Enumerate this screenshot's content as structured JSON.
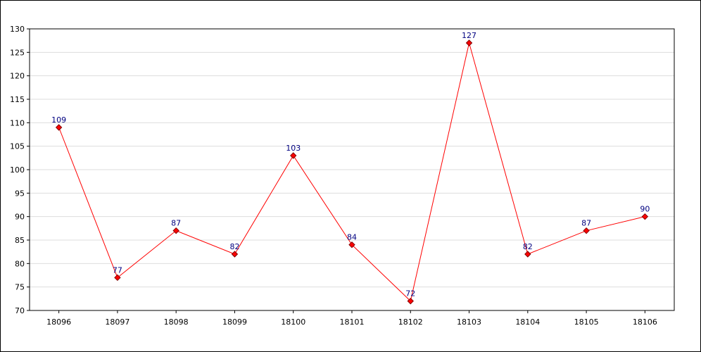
{
  "chart_data": {
    "type": "line",
    "title": "",
    "xlabel": "",
    "ylabel": "",
    "categories": [
      "18096",
      "18097",
      "18098",
      "18099",
      "18100",
      "18101",
      "18102",
      "18103",
      "18104",
      "18105",
      "18106"
    ],
    "series": [
      {
        "values": [
          109,
          77,
          87,
          82,
          103,
          84,
          72,
          127,
          82,
          87,
          90
        ]
      }
    ],
    "ylim": [
      70,
      130
    ],
    "yticks": [
      "70",
      "75",
      "80",
      "85",
      "90",
      "95",
      "100",
      "105",
      "110",
      "115",
      "120",
      "125",
      "130"
    ],
    "grid": true,
    "legend": "none",
    "colors": {
      "line": "#ff0000",
      "marker_fill": "#ff0000",
      "marker_stroke": "#800000",
      "data_label": "#000080",
      "grid": "#dddddd"
    }
  }
}
